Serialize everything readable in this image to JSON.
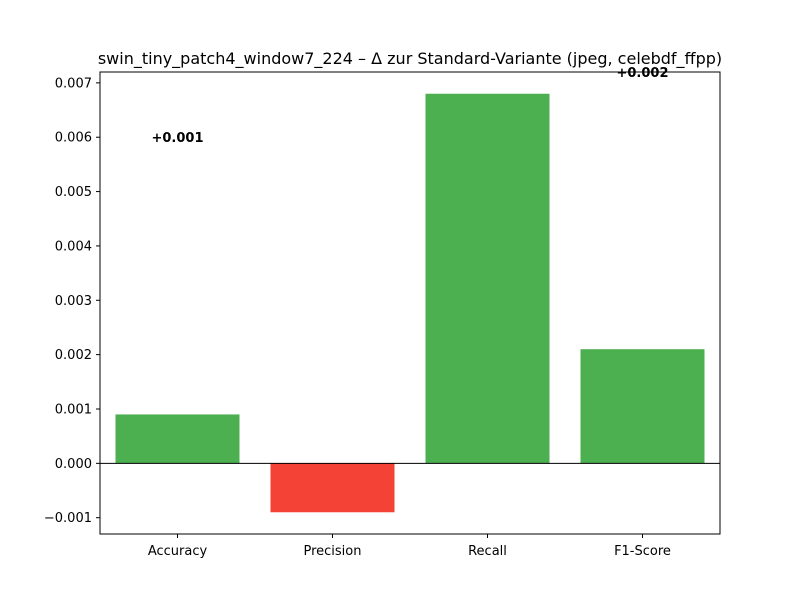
{
  "chart_data": {
    "type": "bar",
    "title": "swin_tiny_patch4_window7_224 – Δ zur Standard-Variante (jpeg, celebdf_ffpp)",
    "xlabel": "",
    "ylabel": "",
    "categories": [
      "Accuracy",
      "Precision",
      "Recall",
      "F1-Score"
    ],
    "values": [
      0.0009,
      -0.0009,
      0.0068,
      0.0021
    ],
    "bar_colors": [
      "#4caf50",
      "#f44336",
      "#4caf50",
      "#4caf50"
    ],
    "data_labels": [
      {
        "category": "Accuracy",
        "text": "+0.001",
        "y": 0.006
      },
      {
        "category": "F1-Score",
        "text": "+0.002",
        "y": 0.0072
      }
    ],
    "ylim": [
      -0.0013,
      0.0072
    ],
    "yticks": [
      -0.001,
      0.0,
      0.001,
      0.002,
      0.003,
      0.004,
      0.005,
      0.006,
      0.007
    ],
    "ytick_labels": [
      "−0.001",
      "0.000",
      "0.001",
      "0.002",
      "0.003",
      "0.004",
      "0.005",
      "0.006",
      "0.007"
    ],
    "zero_line": true,
    "grid": false,
    "legend": "none"
  }
}
